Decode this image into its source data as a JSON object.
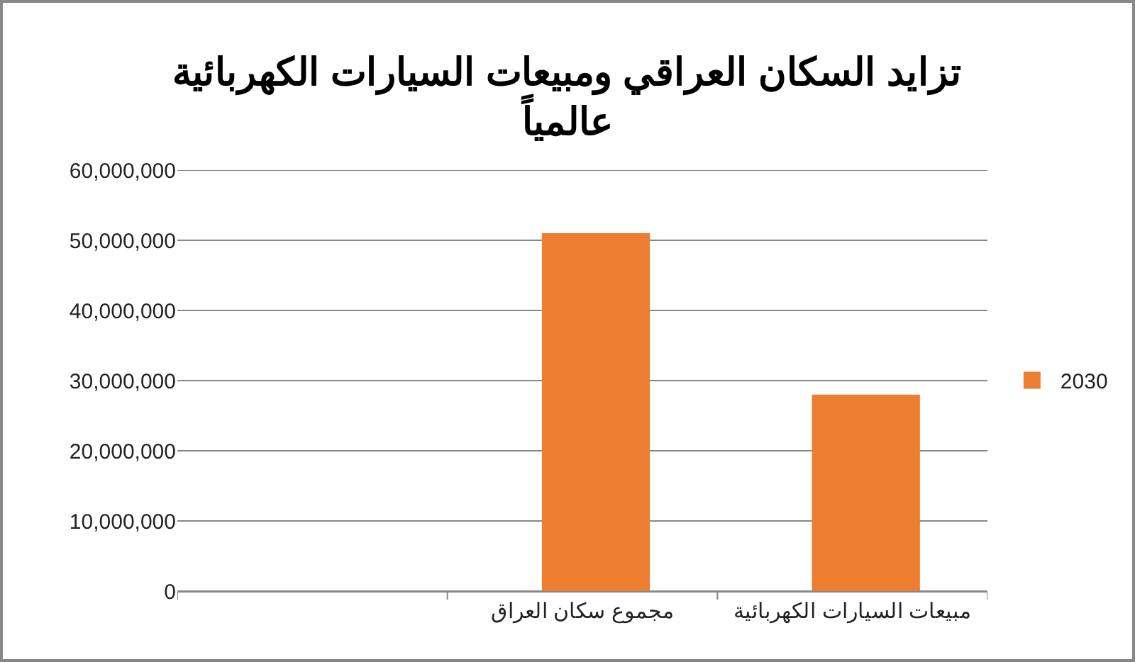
{
  "chart_data": {
    "type": "bar",
    "title": "تزايد السكان العراقي ومبيعات السيارات الكهربائية\nعالمياً",
    "categories": [
      null,
      "مجموع سكان العراق",
      "مبيعات السيارات الكهربائية"
    ],
    "series": [
      {
        "name": "2030",
        "color": "#ed7d31",
        "values": [
          null,
          51000000,
          28000000
        ]
      }
    ],
    "ylim": [
      0,
      60000000
    ],
    "yticks": [
      {
        "value": 0,
        "label": "0"
      },
      {
        "value": 10000000,
        "label": "10,000,000"
      },
      {
        "value": 20000000,
        "label": "20,000,000"
      },
      {
        "value": 30000000,
        "label": "30,000,000"
      },
      {
        "value": 40000000,
        "label": "40,000,000"
      },
      {
        "value": 50000000,
        "label": "50,000,000"
      },
      {
        "value": 60000000,
        "label": "60,000,000"
      }
    ],
    "grid": "y",
    "legend": "right"
  }
}
